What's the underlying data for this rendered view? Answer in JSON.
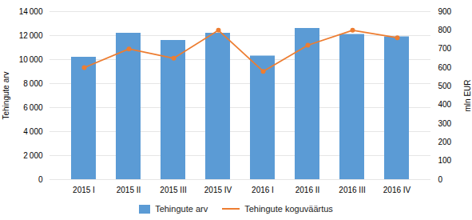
{
  "chart_data": {
    "type": "bar",
    "categories": [
      "2015 I",
      "2015 II",
      "2015 III",
      "2015 IV",
      "2016 I",
      "2016 II",
      "2016 III",
      "2016 IV"
    ],
    "series": [
      {
        "name": "Tehingute arv",
        "type": "bar",
        "color": "#5B9BD5",
        "values": [
          10200,
          12200,
          11600,
          12200,
          10300,
          12600,
          12100,
          11900
        ]
      },
      {
        "name": "Tehingute koguväärtus",
        "type": "line",
        "axis": "y2",
        "color": "#ED7D31",
        "marker": "circle",
        "values": [
          600,
          700,
          650,
          800,
          580,
          720,
          800,
          760
        ]
      }
    ],
    "ylabel": "Tehingute arv",
    "y2label": "mln EUR",
    "ylim": [
      0,
      14000
    ],
    "yticks": [
      0,
      {
        "value": 2000,
        "label": "2 000"
      },
      {
        "value": 4000,
        "label": "4 000"
      },
      {
        "value": 6000,
        "label": "6 000"
      },
      {
        "value": 8000,
        "label": "8 000"
      },
      {
        "value": 10000,
        "label": "10 000"
      },
      {
        "value": 12000,
        "label": "12 000"
      },
      {
        "value": 14000,
        "label": "14 000"
      }
    ],
    "y2lim": [
      0,
      900
    ],
    "y2ticks": [
      0,
      100,
      200,
      300,
      400,
      500,
      600,
      700,
      800,
      900
    ],
    "grid": true,
    "legend": "bottom"
  }
}
